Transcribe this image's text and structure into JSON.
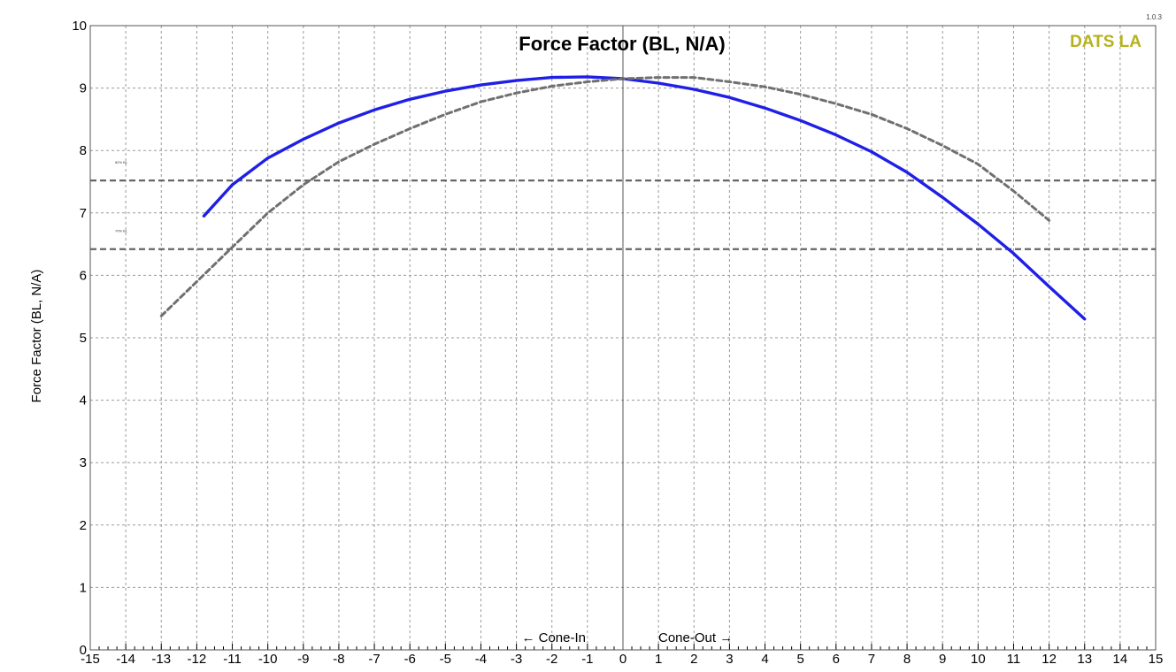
{
  "version": "1.0.3",
  "brand": {
    "text": "DATS LA",
    "color": "#b5b21c"
  },
  "chart_data": {
    "type": "line",
    "title": "Force Factor (BL, N/A)",
    "xlabel": "",
    "ylabel": "Force  Factor  (BL,  N/A)",
    "xlim": [
      -15,
      15
    ],
    "ylim": [
      0,
      10
    ],
    "x_ticks": [
      -15,
      -14,
      -13,
      -12,
      -11,
      -10,
      -9,
      -8,
      -7,
      -6,
      -5,
      -4,
      -3,
      -2,
      -1,
      0,
      1,
      2,
      3,
      4,
      5,
      6,
      7,
      8,
      9,
      10,
      11,
      12,
      13,
      14,
      15
    ],
    "y_ticks": [
      0,
      1,
      2,
      3,
      4,
      5,
      6,
      7,
      8,
      9,
      10
    ],
    "grid": true,
    "direction_labels": {
      "left": "← Cone-In",
      "right": "Cone-Out →"
    },
    "series": [
      {
        "style": "solid",
        "color": "#1f1fe6",
        "x": [
          -11.8,
          -11,
          -10,
          -9,
          -8,
          -7,
          -6,
          -5,
          -4,
          -3,
          -2,
          -1,
          0,
          1,
          2,
          3,
          4,
          5,
          6,
          7,
          8,
          9,
          10,
          11,
          12,
          13
        ],
        "y": [
          6.95,
          7.45,
          7.88,
          8.18,
          8.44,
          8.65,
          8.82,
          8.95,
          9.05,
          9.12,
          9.17,
          9.18,
          9.15,
          9.08,
          8.98,
          8.85,
          8.68,
          8.48,
          8.25,
          7.98,
          7.65,
          7.25,
          6.82,
          6.35,
          5.82,
          5.3
        ]
      },
      {
        "style": "dashed",
        "color": "#707070",
        "x": [
          -13,
          -12,
          -11,
          -10,
          -9,
          -8,
          -7,
          -6,
          -5,
          -4,
          -3,
          -2,
          -1,
          0,
          1,
          2,
          3,
          4,
          5,
          6,
          7,
          8,
          9,
          10,
          11,
          12
        ],
        "y": [
          5.35,
          5.9,
          6.45,
          7.0,
          7.45,
          7.82,
          8.1,
          8.35,
          8.58,
          8.78,
          8.92,
          9.03,
          9.1,
          9.15,
          9.17,
          9.17,
          9.1,
          9.02,
          8.9,
          8.75,
          8.58,
          8.35,
          8.08,
          7.78,
          7.35,
          6.88
        ]
      }
    ],
    "reference_lines": [
      {
        "y": 7.52,
        "label": "82% BL"
      },
      {
        "y": 6.42,
        "label": "70% BL"
      }
    ]
  }
}
